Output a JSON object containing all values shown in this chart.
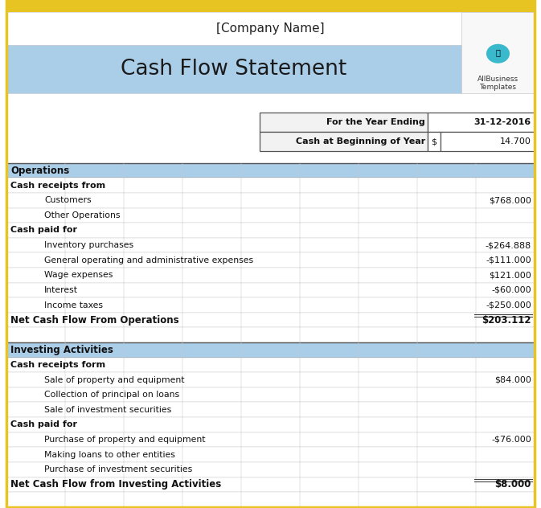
{
  "company_name": "[Company Name]",
  "title": "Cash Flow Statement",
  "year_ending_label": "For the Year Ending",
  "year_ending_value": "31-12-2016",
  "cash_beginning_label": "Cash at Beginning of Year",
  "cash_beginning_symbol": "$",
  "cash_beginning_value": "14.700",
  "bg_color": "#ffffff",
  "header_blue": "#aacde8",
  "section_blue": "#aacde8",
  "border_color": "#c0c0c0",
  "dark_border": "#555555",
  "yellow_top": "#e8c422",
  "grid_color": "#c8c8c8",
  "logo_teal": "#3ab8cc",
  "rows": [
    {
      "type": "section",
      "label": "Operations",
      "value": ""
    },
    {
      "type": "header",
      "label": "Cash receipts from",
      "value": ""
    },
    {
      "type": "item",
      "label": "Customers",
      "value": "$768.000"
    },
    {
      "type": "item",
      "label": "Other Operations",
      "value": ""
    },
    {
      "type": "header",
      "label": "Cash paid for",
      "value": ""
    },
    {
      "type": "item",
      "label": "Inventory purchases",
      "value": "-$264.888"
    },
    {
      "type": "item",
      "label": "General operating and administrative expenses",
      "value": "-$111.000"
    },
    {
      "type": "item",
      "label": "Wage expenses",
      "value": "$121.000"
    },
    {
      "type": "item",
      "label": "Interest",
      "value": "-$60.000"
    },
    {
      "type": "item",
      "label": "Income taxes",
      "value": "-$250.000"
    },
    {
      "type": "total",
      "label": "Net Cash Flow From Operations",
      "value": "$203.112"
    },
    {
      "type": "blank",
      "label": "",
      "value": ""
    },
    {
      "type": "section",
      "label": "Investing Activities",
      "value": ""
    },
    {
      "type": "header",
      "label": "Cash receipts form",
      "value": ""
    },
    {
      "type": "item",
      "label": "Sale of property and equipment",
      "value": "$84.000"
    },
    {
      "type": "item",
      "label": "Collection of principal on loans",
      "value": ""
    },
    {
      "type": "item",
      "label": "Sale of investment securities",
      "value": ""
    },
    {
      "type": "header",
      "label": "Cash paid for",
      "value": ""
    },
    {
      "type": "item",
      "label": "Purchase of property and equipment",
      "value": "-$76.000"
    },
    {
      "type": "item",
      "label": "Making loans to other entities",
      "value": ""
    },
    {
      "type": "item",
      "label": "Purchase of investment securities",
      "value": ""
    },
    {
      "type": "total",
      "label": "Net Cash Flow from Investing Activities",
      "value": "$8.000"
    },
    {
      "type": "blank",
      "label": "",
      "value": ""
    }
  ]
}
